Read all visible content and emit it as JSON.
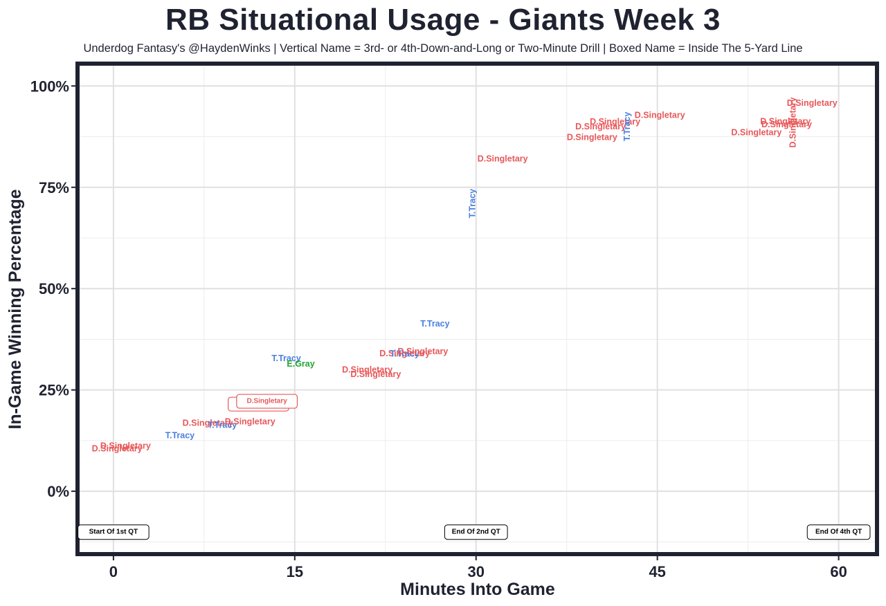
{
  "chart_data": {
    "type": "scatter",
    "title": "RB Situational Usage - Giants Week 3",
    "subtitle": "Underdog Fantasy's @HaydenWinks | Vertical Name = 3rd- or 4th-Down-and-Long or Two-Minute Drill | Boxed Name = Inside The 5-Yard Line",
    "xlabel": "Minutes Into Game",
    "ylabel": "In-Game Winning Percentage",
    "xlim": [
      -2.8,
      63
    ],
    "ylim": [
      -15,
      105
    ],
    "x_ticks": [
      0,
      15,
      30,
      45,
      60
    ],
    "x_tick_labels": [
      "0",
      "15",
      "30",
      "45",
      "60"
    ],
    "y_ticks": [
      0,
      25,
      50,
      75,
      100
    ],
    "y_tick_labels": [
      "0%",
      "25%",
      "50%",
      "75%",
      "100%"
    ],
    "grid": true,
    "player_colors": {
      "D.Singletary": "#e8585a",
      "T.Tracy": "#4a7fe0",
      "E.Gray": "#22a52f"
    },
    "points": [
      {
        "name": "D.Singletary",
        "x": 1.0,
        "y": 11.2,
        "style": "normal"
      },
      {
        "name": "D.Singletary",
        "x": 0.3,
        "y": 10.5,
        "style": "normal"
      },
      {
        "name": "T.Tracy",
        "x": 5.5,
        "y": 13.8,
        "style": "normal"
      },
      {
        "name": "D.Singletary",
        "x": 7.8,
        "y": 16.8,
        "style": "normal"
      },
      {
        "name": "T.Tracy",
        "x": 9.0,
        "y": 16.3,
        "style": "normal"
      },
      {
        "name": "D.Singletary",
        "x": 11.3,
        "y": 17.2,
        "style": "normal"
      },
      {
        "name": "D.Singletary",
        "x": 12.0,
        "y": 21.5,
        "style": "boxed"
      },
      {
        "name": "D.Singletary",
        "x": 12.7,
        "y": 22.2,
        "style": "boxed"
      },
      {
        "name": "T.Tracy",
        "x": 14.3,
        "y": 32.8,
        "style": "normal"
      },
      {
        "name": "E.Gray",
        "x": 15.5,
        "y": 31.4,
        "style": "normal"
      },
      {
        "name": "D.Singletary",
        "x": 21.0,
        "y": 30.0,
        "style": "normal"
      },
      {
        "name": "D.Singletary",
        "x": 21.7,
        "y": 28.9,
        "style": "normal"
      },
      {
        "name": "D.Singletary",
        "x": 24.1,
        "y": 34.0,
        "style": "normal"
      },
      {
        "name": "T.Tracy",
        "x": 24.1,
        "y": 33.9,
        "style": "normal"
      },
      {
        "name": "D.Singletary",
        "x": 25.6,
        "y": 34.5,
        "style": "normal"
      },
      {
        "name": "T.Tracy",
        "x": 26.6,
        "y": 41.3,
        "style": "normal"
      },
      {
        "name": "T.Tracy",
        "x": 29.7,
        "y": 71.0,
        "style": "vertical"
      },
      {
        "name": "D.Singletary",
        "x": 32.2,
        "y": 82.0,
        "style": "normal"
      },
      {
        "name": "D.Singletary",
        "x": 39.6,
        "y": 87.3,
        "style": "normal"
      },
      {
        "name": "D.Singletary",
        "x": 40.3,
        "y": 90.0,
        "style": "normal"
      },
      {
        "name": "D.Singletary",
        "x": 41.5,
        "y": 91.2,
        "style": "normal"
      },
      {
        "name": "T.Tracy",
        "x": 42.5,
        "y": 90.0,
        "style": "vertical"
      },
      {
        "name": "D.Singletary",
        "x": 45.2,
        "y": 92.8,
        "style": "normal"
      },
      {
        "name": "D.Singletary",
        "x": 53.2,
        "y": 88.5,
        "style": "normal"
      },
      {
        "name": "D.Singletary",
        "x": 55.6,
        "y": 91.3,
        "style": "normal"
      },
      {
        "name": "D.Singletary",
        "x": 55.7,
        "y": 90.5,
        "style": "normal"
      },
      {
        "name": "D.Singletary",
        "x": 56.2,
        "y": 91.0,
        "style": "vertical"
      },
      {
        "name": "D.Singletary",
        "x": 57.8,
        "y": 95.8,
        "style": "normal"
      }
    ],
    "annotations": [
      {
        "text": "Start Of 1st QT",
        "x": 0,
        "y": -10
      },
      {
        "text": "End Of 2nd QT",
        "x": 30,
        "y": -10
      },
      {
        "text": "End Of 4th QT",
        "x": 60,
        "y": -10
      }
    ]
  }
}
